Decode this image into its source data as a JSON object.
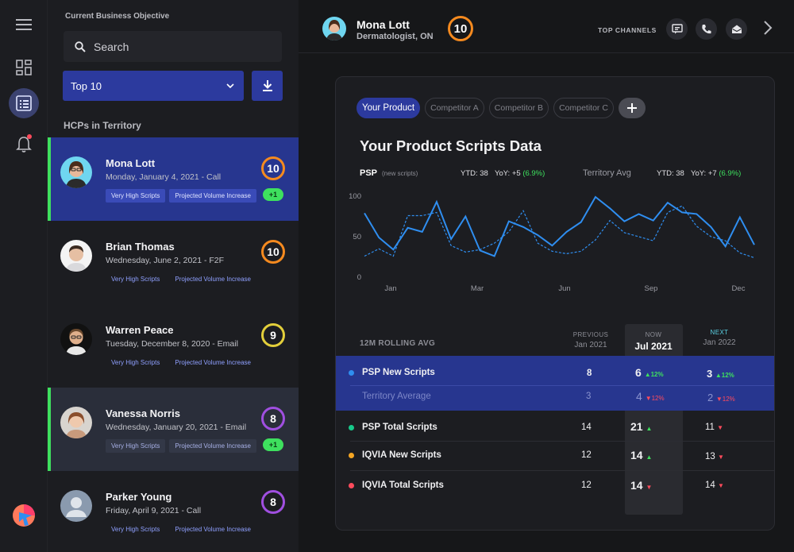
{
  "sidebar": {
    "objective_label": "Current Business Objective",
    "search_placeholder": "Search",
    "dropdown_value": "Top 10",
    "hcps_label": "HCPs in Territory"
  },
  "hcps": [
    {
      "name": "Mona Lott",
      "date": "Monday, January 4, 2021 - Call",
      "tag1": "Very High Scripts",
      "tag2": "Projected Volume Increase",
      "score": "10",
      "badge": "+1"
    },
    {
      "name": "Brian Thomas",
      "date": "Wednesday, June 2, 2021 - F2F",
      "tag1": "Very High Scripts",
      "tag2": "Projected Volume Increase",
      "score": "10"
    },
    {
      "name": "Warren Peace",
      "date": "Tuesday, December 8, 2020 - Email",
      "tag1": "Very High Scripts",
      "tag2": "Projected Volume Increase",
      "score": "9"
    },
    {
      "name": "Vanessa Norris",
      "date": "Wednesday, January 20, 2021 - Email",
      "tag1": "Very High Scripts",
      "tag2": "Projected Volume Increase",
      "score": "8",
      "badge": "+1"
    },
    {
      "name": "Parker Young",
      "date": "Friday, April 9, 2021 - Call",
      "tag1": "Very High Scripts",
      "tag2": "Projected Volume Increase",
      "score": "8"
    }
  ],
  "header": {
    "name": "Mona Lott",
    "specialty": "Dermatologist, ON",
    "score": "10",
    "top_channels_label": "TOP CHANNELS"
  },
  "tabs": [
    "Your Product",
    "Competitor A",
    "Competitor B",
    "Competitor C"
  ],
  "panel": {
    "title": "Your Product Scripts Data",
    "psp_label": "PSP",
    "psp_sub": "(new scripts)",
    "psp_ytd": "YTD: 38",
    "psp_yoy_prefix": "YoY: +5",
    "psp_yoy_pct": "(6.9%)",
    "ta_label": "Territory Avg",
    "ta_ytd": "YTD: 38",
    "ta_yoy_prefix": "YoY: +7",
    "ta_yoy_pct": "(6.9%)"
  },
  "chart_data": {
    "type": "line",
    "y_ticks": [
      "100",
      "50",
      "0"
    ],
    "x_ticks": [
      "Jan",
      "Mar",
      "Jun",
      "Sep",
      "Dec"
    ],
    "ylim": [
      0,
      100
    ],
    "series": [
      {
        "style": "solid",
        "values": [
          79,
          49,
          34,
          61,
          56,
          93,
          47,
          75,
          33,
          26,
          69,
          62,
          52,
          39,
          56,
          68,
          99,
          85,
          69,
          78,
          70,
          92,
          80,
          78,
          62,
          38,
          74,
          40
        ]
      },
      {
        "style": "dashed",
        "values": [
          26,
          35,
          26,
          76,
          76,
          80,
          39,
          31,
          34,
          42,
          56,
          82,
          42,
          32,
          29,
          32,
          46,
          70,
          55,
          50,
          45,
          80,
          88,
          63,
          50,
          45,
          30,
          24
        ]
      }
    ]
  },
  "table": {
    "title": "12M ROLLING AVG",
    "prev_top": "PREVIOUS",
    "prev_bot": "Jan 2021",
    "now_top": "NOW",
    "now_bot": "Jul 2021",
    "next_top": "NEXT",
    "next_bot": "Jan 2022",
    "rows": [
      {
        "label": "PSP New Scripts",
        "prev": "8",
        "now": "6",
        "now_pct": "12%",
        "next": "3",
        "next_pct": "12%"
      },
      {
        "label": "Territory Average",
        "prev": "3",
        "now": "4",
        "now_pct": "12%",
        "next": "2",
        "next_pct": "12%"
      },
      {
        "label": "PSP Total Scripts",
        "prev": "14",
        "now": "21",
        "next": "11"
      },
      {
        "label": "IQVIA New Scripts",
        "prev": "12",
        "now": "14",
        "next": "13"
      },
      {
        "label": "IQVIA Total Scripts",
        "prev": "12",
        "now": "14",
        "next": "14"
      }
    ]
  },
  "colors": {
    "accent": "#2c3a9e",
    "line": "#2f8ef0",
    "green": "#3ee05e",
    "red": "#ff4b5c",
    "orange": "#f58a1f",
    "yellow": "#e3cf3b",
    "purple": "#a04fe0"
  }
}
